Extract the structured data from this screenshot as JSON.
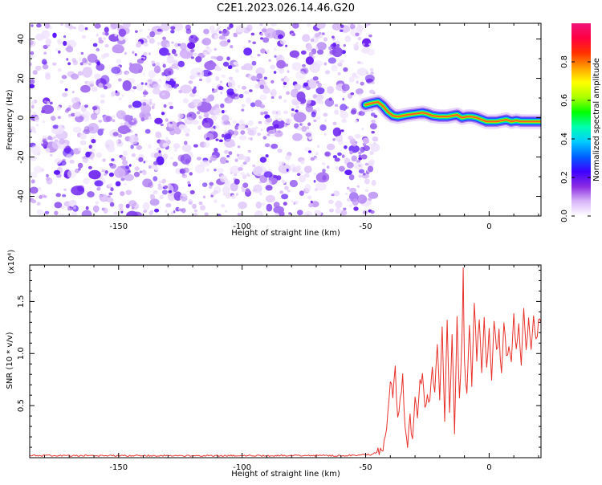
{
  "title": "C2E1.2023.026.14.46.G20",
  "chart_data": [
    {
      "type": "heatmap",
      "xlabel": "Height of straight line (km)",
      "ylabel": "Frequency (Hz)",
      "xlim": [
        -186,
        21
      ],
      "ylim": [
        -50,
        48
      ],
      "x_ticks": [
        -150,
        -100,
        -50,
        0
      ],
      "y_ticks": [
        -40,
        -20,
        0,
        20,
        40
      ],
      "noise_region_x": [
        -186,
        -46
      ],
      "signal_trace": {
        "x": [
          -50,
          -47,
          -45,
          -43,
          -41,
          -39,
          -37,
          -35,
          -33,
          -30,
          -27,
          -25,
          -23,
          -20,
          -17,
          -15,
          -13,
          -11,
          -9,
          -7,
          -5,
          -3,
          -1,
          1,
          3,
          5,
          7,
          9,
          11,
          13,
          15,
          17,
          19,
          21
        ],
        "frequency_hz": [
          6.5,
          7.5,
          8,
          6,
          3,
          1,
          0.5,
          1,
          1.5,
          2,
          2.5,
          2,
          1,
          0.5,
          0.5,
          1,
          1.5,
          0,
          0.5,
          0.5,
          0,
          -1,
          -2,
          -2,
          -2,
          -1.5,
          -1,
          -2,
          -1.5,
          -2,
          -2,
          -2,
          -2,
          -2
        ]
      },
      "colorbar": {
        "label": "Normalized spectral amplitude",
        "range": [
          0,
          1
        ],
        "ticks": [
          "0.0",
          "0.2",
          "0.4",
          "0.6",
          "0.8"
        ],
        "colors": [
          "#ffffff",
          "#d8b4f8",
          "#8a2be2",
          "#3d00ff",
          "#0060ff",
          "#00ccff",
          "#00ffb0",
          "#00ff00",
          "#aaff00",
          "#ffff00",
          "#ffa000",
          "#ff3000",
          "#ff0040",
          "#f0147a"
        ]
      }
    },
    {
      "type": "line",
      "xlabel": "Height of straight line (km)",
      "ylabel": "SNR (10 * v/v)",
      "scale_label": "(x10⁴)",
      "xlim": [
        -186,
        21
      ],
      "ylim": [
        0,
        1.85
      ],
      "x_ticks": [
        -150,
        -100,
        -50,
        0
      ],
      "y_ticks": [
        "0.5",
        "1.0",
        "1.5"
      ],
      "series": [
        {
          "color": "#e8312a",
          "x": [
            -186,
            -150,
            -100,
            -60,
            -48,
            -45,
            -43,
            -42,
            -41,
            -40,
            -39,
            -38,
            -37,
            -36,
            -35,
            -34,
            -33,
            -32,
            -31,
            -30,
            -29,
            -28,
            -27,
            -26,
            -25,
            -24,
            -23,
            -22,
            -21,
            -20,
            -19,
            -18,
            -17,
            -16,
            -15,
            -14,
            -13,
            -12,
            -11,
            -10.5,
            -10,
            -9,
            -8,
            -7,
            -6,
            -5,
            -4,
            -3,
            -2,
            -1,
            0,
            1,
            2,
            3,
            4,
            5,
            6,
            7,
            8,
            9,
            10,
            11,
            12,
            13,
            14,
            15,
            16,
            17,
            18,
            19,
            20,
            21
          ],
          "y": [
            0.02,
            0.02,
            0.02,
            0.02,
            0.03,
            0.05,
            0.1,
            0.2,
            0.45,
            0.75,
            0.6,
            0.85,
            0.35,
            0.55,
            0.8,
            0.25,
            0.1,
            0.4,
            0.15,
            0.6,
            0.35,
            0.7,
            0.8,
            0.45,
            0.65,
            0.5,
            0.9,
            0.6,
            1.1,
            0.55,
            1.25,
            0.3,
            1.3,
            0.4,
            1.2,
            0.2,
            1.35,
            0.55,
            1.1,
            1.85,
            0.9,
            0.6,
            1.3,
            0.7,
            1.45,
            0.95,
            1.3,
            0.85,
            1.3,
            0.9,
            1.2,
            0.75,
            1.35,
            1.0,
            1.2,
            0.8,
            1.3,
            0.95,
            1.05,
            0.9,
            1.35,
            1.0,
            1.25,
            0.9,
            1.4,
            1.05,
            1.3,
            1.0,
            1.4,
            1.1,
            1.3,
            1.3
          ]
        }
      ]
    }
  ]
}
